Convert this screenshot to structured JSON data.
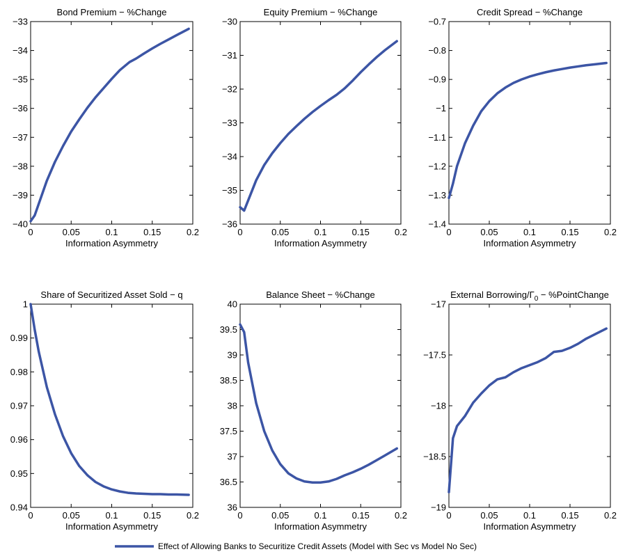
{
  "legend": {
    "label": "Effect of Allowing Banks to Securitize Credit Assets (Model with Sec vs Model No Sec)",
    "color": "#3c55a5"
  },
  "chart_data": [
    {
      "type": "line",
      "title": "Bond Premium − %Change",
      "xlabel": "Information Asymmetry",
      "xlim": [
        0,
        0.2
      ],
      "ylim": [
        -40,
        -33
      ],
      "xticks": [
        "0",
        "0.05",
        "0.1",
        "0.15",
        "0.2"
      ],
      "yticks": [
        "−40",
        "−39",
        "−38",
        "−37",
        "−36",
        "−35",
        "−34",
        "−33"
      ],
      "series": [
        {
          "x": [
            0,
            0.005,
            0.01,
            0.02,
            0.03,
            0.04,
            0.05,
            0.06,
            0.07,
            0.08,
            0.09,
            0.1,
            0.11,
            0.122,
            0.13,
            0.14,
            0.15,
            0.16,
            0.17,
            0.18,
            0.195
          ],
          "y": [
            -39.9,
            -39.7,
            -39.3,
            -38.5,
            -37.85,
            -37.3,
            -36.8,
            -36.38,
            -35.98,
            -35.62,
            -35.3,
            -34.98,
            -34.68,
            -34.4,
            -34.28,
            -34.1,
            -33.93,
            -33.77,
            -33.62,
            -33.47,
            -33.25
          ]
        }
      ]
    },
    {
      "type": "line",
      "title": "Equity Premium − %Change",
      "xlabel": "Information Asymmetry",
      "xlim": [
        0,
        0.2
      ],
      "ylim": [
        -36,
        -30
      ],
      "xticks": [
        "0",
        "0.05",
        "0.1",
        "0.15",
        "0.2"
      ],
      "yticks": [
        "−36",
        "−35",
        "−34",
        "−33",
        "−32",
        "−31",
        "−30"
      ],
      "series": [
        {
          "x": [
            0,
            0.005,
            0.01,
            0.02,
            0.03,
            0.04,
            0.05,
            0.06,
            0.07,
            0.08,
            0.09,
            0.1,
            0.11,
            0.12,
            0.13,
            0.14,
            0.15,
            0.16,
            0.17,
            0.18,
            0.195
          ],
          "y": [
            -35.5,
            -35.6,
            -35.3,
            -34.7,
            -34.25,
            -33.9,
            -33.6,
            -33.33,
            -33.1,
            -32.88,
            -32.68,
            -32.5,
            -32.33,
            -32.17,
            -31.98,
            -31.75,
            -31.5,
            -31.27,
            -31.05,
            -30.85,
            -30.58
          ]
        }
      ]
    },
    {
      "type": "line",
      "title": "Credit Spread − %Change",
      "xlabel": "Information Asymmetry",
      "xlim": [
        0,
        0.2
      ],
      "ylim": [
        -1.4,
        -0.7
      ],
      "xticks": [
        "0",
        "0.05",
        "0.1",
        "0.15",
        "0.2"
      ],
      "yticks": [
        "−1.4",
        "−1.3",
        "−1.2",
        "−1.1",
        "−1",
        "−0.9",
        "−0.8",
        "−0.7"
      ],
      "series": [
        {
          "x": [
            0,
            0.005,
            0.01,
            0.02,
            0.03,
            0.04,
            0.05,
            0.06,
            0.07,
            0.08,
            0.09,
            0.1,
            0.11,
            0.12,
            0.13,
            0.14,
            0.15,
            0.16,
            0.17,
            0.18,
            0.195
          ],
          "y": [
            -1.31,
            -1.26,
            -1.2,
            -1.12,
            -1.06,
            -1.01,
            -0.975,
            -0.948,
            -0.928,
            -0.912,
            -0.9,
            -0.89,
            -0.882,
            -0.875,
            -0.869,
            -0.864,
            -0.859,
            -0.855,
            -0.851,
            -0.848,
            -0.843
          ]
        }
      ]
    },
    {
      "type": "line",
      "title": "Share of Securitized Asset Sold − q",
      "xlabel": "Information Asymmetry",
      "xlim": [
        0,
        0.2
      ],
      "ylim": [
        0.94,
        1
      ],
      "xticks": [
        "0",
        "0.05",
        "0.1",
        "0.15",
        "0.2"
      ],
      "yticks": [
        "0.94",
        "0.95",
        "0.96",
        "0.97",
        "0.98",
        "0.99",
        "1"
      ],
      "series": [
        {
          "x": [
            0,
            0.005,
            0.01,
            0.02,
            0.03,
            0.04,
            0.05,
            0.06,
            0.07,
            0.08,
            0.09,
            0.1,
            0.11,
            0.12,
            0.13,
            0.14,
            0.15,
            0.16,
            0.17,
            0.18,
            0.195
          ],
          "y": [
            1,
            0.9925,
            0.986,
            0.9755,
            0.9675,
            0.961,
            0.956,
            0.9522,
            0.9495,
            0.9475,
            0.9462,
            0.9453,
            0.9447,
            0.9443,
            0.9441,
            0.944,
            0.9439,
            0.9439,
            0.9438,
            0.9438,
            0.9437
          ]
        }
      ]
    },
    {
      "type": "line",
      "title": "Balance Sheet − %Change",
      "xlabel": "Information Asymmetry",
      "xlim": [
        0,
        0.2
      ],
      "ylim": [
        36,
        40
      ],
      "xticks": [
        "0",
        "0.05",
        "0.1",
        "0.15",
        "0.2"
      ],
      "yticks": [
        "36",
        "36.5",
        "37",
        "37.5",
        "38",
        "38.5",
        "39",
        "39.5",
        "40"
      ],
      "series": [
        {
          "x": [
            0,
            0.005,
            0.01,
            0.02,
            0.03,
            0.04,
            0.05,
            0.06,
            0.07,
            0.08,
            0.09,
            0.1,
            0.11,
            0.12,
            0.13,
            0.14,
            0.15,
            0.16,
            0.17,
            0.18,
            0.195
          ],
          "y": [
            39.6,
            39.45,
            38.85,
            38.05,
            37.5,
            37.12,
            36.85,
            36.67,
            36.57,
            36.51,
            36.49,
            36.49,
            36.51,
            36.56,
            36.63,
            36.69,
            36.76,
            36.84,
            36.93,
            37.02,
            37.16
          ]
        }
      ]
    },
    {
      "type": "line",
      "title": "External Borrowing/Γ",
      "title_subscript": "0",
      "title_suffix": " − %PointChange",
      "xlabel": "Information Asymmetry",
      "xlim": [
        0,
        0.2
      ],
      "ylim": [
        -19,
        -17
      ],
      "xticks": [
        "0",
        "0.05",
        "0.1",
        "0.15",
        "0.2"
      ],
      "yticks": [
        "−19",
        "−18.5",
        "−18",
        "−17.5",
        "−17"
      ],
      "series": [
        {
          "x": [
            0,
            0.005,
            0.01,
            0.02,
            0.03,
            0.04,
            0.05,
            0.06,
            0.065,
            0.07,
            0.08,
            0.09,
            0.1,
            0.11,
            0.12,
            0.13,
            0.14,
            0.15,
            0.16,
            0.17,
            0.18,
            0.195
          ],
          "y": [
            -18.85,
            -18.32,
            -18.2,
            -18.1,
            -17.97,
            -17.88,
            -17.8,
            -17.74,
            -17.73,
            -17.72,
            -17.67,
            -17.63,
            -17.6,
            -17.57,
            -17.53,
            -17.47,
            -17.46,
            -17.43,
            -17.39,
            -17.34,
            -17.3,
            -17.24
          ]
        }
      ]
    }
  ]
}
